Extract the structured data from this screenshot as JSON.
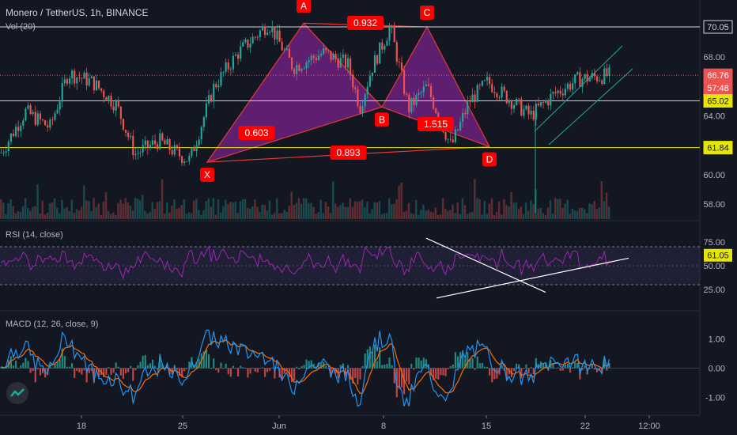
{
  "header": {
    "symbol_line": "Monero / TetherUS, 1h, BINANCE",
    "vol_label": "Vol (20)"
  },
  "rsi_label": "RSI (14, close)",
  "macd_label": "MACD (12, 26, close, 9)",
  "colors": {
    "background": "#131722",
    "up": "#26a69a",
    "down": "#ef5350",
    "pattern_fill": "#9c27b0",
    "rsi": "#9c27b0",
    "macd": "#2196f3",
    "signal": "#ff6d00",
    "yellow_line": "#e6e600",
    "white_line": "#d1d4dc",
    "red_label": "#ff0000"
  },
  "price_axis": {
    "ticks": [
      "70.05",
      "68.00",
      "66.00",
      "64.00",
      "62.00",
      "60.00",
      "58.00"
    ],
    "current_price": "66.76",
    "countdown": "57:48",
    "level_yellow_high": "65.02",
    "level_yellow_low": "61.84",
    "level_white": "70.05"
  },
  "rsi_axis": {
    "ticks": [
      "75.00",
      "50.00",
      "25.00"
    ],
    "current": "61.05"
  },
  "macd_axis": {
    "ticks": [
      "1.00",
      "0.00",
      "-1.00"
    ]
  },
  "time_axis": [
    "18",
    "25",
    "Jun",
    "8",
    "15",
    "22",
    "12:00"
  ],
  "pattern": {
    "points": {
      "X": {
        "label": "X",
        "price": 60.85
      },
      "A": {
        "label": "A",
        "price": 70.3
      },
      "B": {
        "label": "B",
        "price": 64.6
      },
      "C": {
        "label": "C",
        "price": 70.05
      },
      "D": {
        "label": "D",
        "price": 61.9
      }
    },
    "ratios": {
      "XB": "0.603",
      "AC": "0.932",
      "BD": "1.515",
      "XD": "0.893"
    }
  },
  "chart_data": [
    {
      "type": "candlestick",
      "title": "Monero / TetherUS, 1h, BINANCE",
      "x_ticks": [
        "18",
        "25",
        "Jun",
        "8",
        "15",
        "22",
        "12:00"
      ],
      "y_ticks": [
        70.05,
        68.0,
        66.0,
        64.0,
        62.0,
        60.0,
        58.0
      ],
      "ylim": [
        57.0,
        71.2
      ],
      "price_key_points": [
        {
          "t": 0,
          "p": 61.5
        },
        {
          "t": 0.04,
          "p": 64.3
        },
        {
          "t": 0.08,
          "p": 63.2
        },
        {
          "t": 0.11,
          "p": 66.9
        },
        {
          "t": 0.15,
          "p": 66.3
        },
        {
          "t": 0.19,
          "p": 64.7
        },
        {
          "t": 0.22,
          "p": 61.4
        },
        {
          "t": 0.26,
          "p": 62.3
        },
        {
          "t": 0.29,
          "p": 61.4
        },
        {
          "t": 0.31,
          "p": 61.0
        },
        {
          "t": 0.35,
          "p": 66.0
        },
        {
          "t": 0.39,
          "p": 68.3
        },
        {
          "t": 0.44,
          "p": 70.3
        },
        {
          "t": 0.48,
          "p": 67.3
        },
        {
          "t": 0.53,
          "p": 68.3
        },
        {
          "t": 0.57,
          "p": 67.5
        },
        {
          "t": 0.59,
          "p": 64.6
        },
        {
          "t": 0.61,
          "p": 67.3
        },
        {
          "t": 0.64,
          "p": 70.05
        },
        {
          "t": 0.67,
          "p": 64.5
        },
        {
          "t": 0.7,
          "p": 66.0
        },
        {
          "t": 0.74,
          "p": 61.9
        },
        {
          "t": 0.77,
          "p": 65.0
        },
        {
          "t": 0.8,
          "p": 66.3
        },
        {
          "t": 0.84,
          "p": 65.0
        },
        {
          "t": 0.87,
          "p": 64.0
        },
        {
          "t": 0.91,
          "p": 65.5
        },
        {
          "t": 0.95,
          "p": 66.5
        },
        {
          "t": 1.0,
          "p": 66.76
        }
      ],
      "horizontal_levels": [
        70.05,
        65.02,
        61.84
      ],
      "current_price": 66.76
    },
    {
      "type": "line",
      "title": "RSI (14, close)",
      "y_ticks": [
        75.0,
        50.0,
        25.0
      ],
      "ylim": [
        5,
        95
      ],
      "current": 61.05
    },
    {
      "type": "bar",
      "title": "MACD (12, 26, close, 9)",
      "y_ticks": [
        1.0,
        0.0,
        -1.0
      ],
      "ylim": [
        -1.5,
        1.5
      ]
    }
  ]
}
